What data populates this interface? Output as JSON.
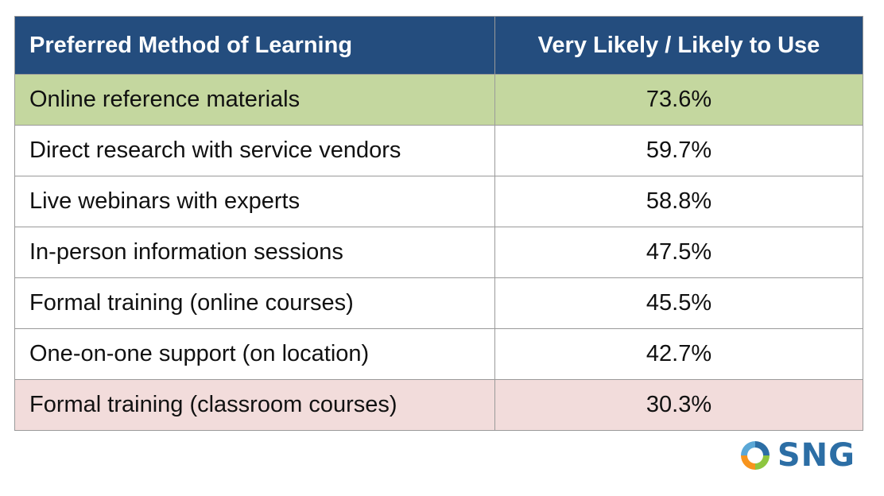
{
  "chart_data": {
    "type": "table",
    "columns": [
      "Preferred Method of Learning",
      "Very Likely / Likely to Use"
    ],
    "rows": [
      {
        "method": "Online reference materials",
        "value": "73.6%",
        "highlight": "top"
      },
      {
        "method": "Direct research with service vendors",
        "value": "59.7%"
      },
      {
        "method": "Live webinars with experts",
        "value": "58.8%"
      },
      {
        "method": "In-person information sessions",
        "value": "47.5%"
      },
      {
        "method": "Formal training (online courses)",
        "value": "45.5%"
      },
      {
        "method": "One-on-one support (on location)",
        "value": "42.7%"
      },
      {
        "method": "Formal training (classroom courses)",
        "value": "30.3%",
        "highlight": "bottom"
      }
    ]
  },
  "colors": {
    "header_bg": "#244d7e",
    "top_row_bg": "#c4d79f",
    "bottom_row_bg": "#f2dcdb",
    "logo_blue": "#2c6ea5",
    "logo_green": "#8dc63f",
    "logo_orange": "#f7941d"
  },
  "logo": {
    "text": "SNG",
    "icon": "sng-logo-icon"
  }
}
